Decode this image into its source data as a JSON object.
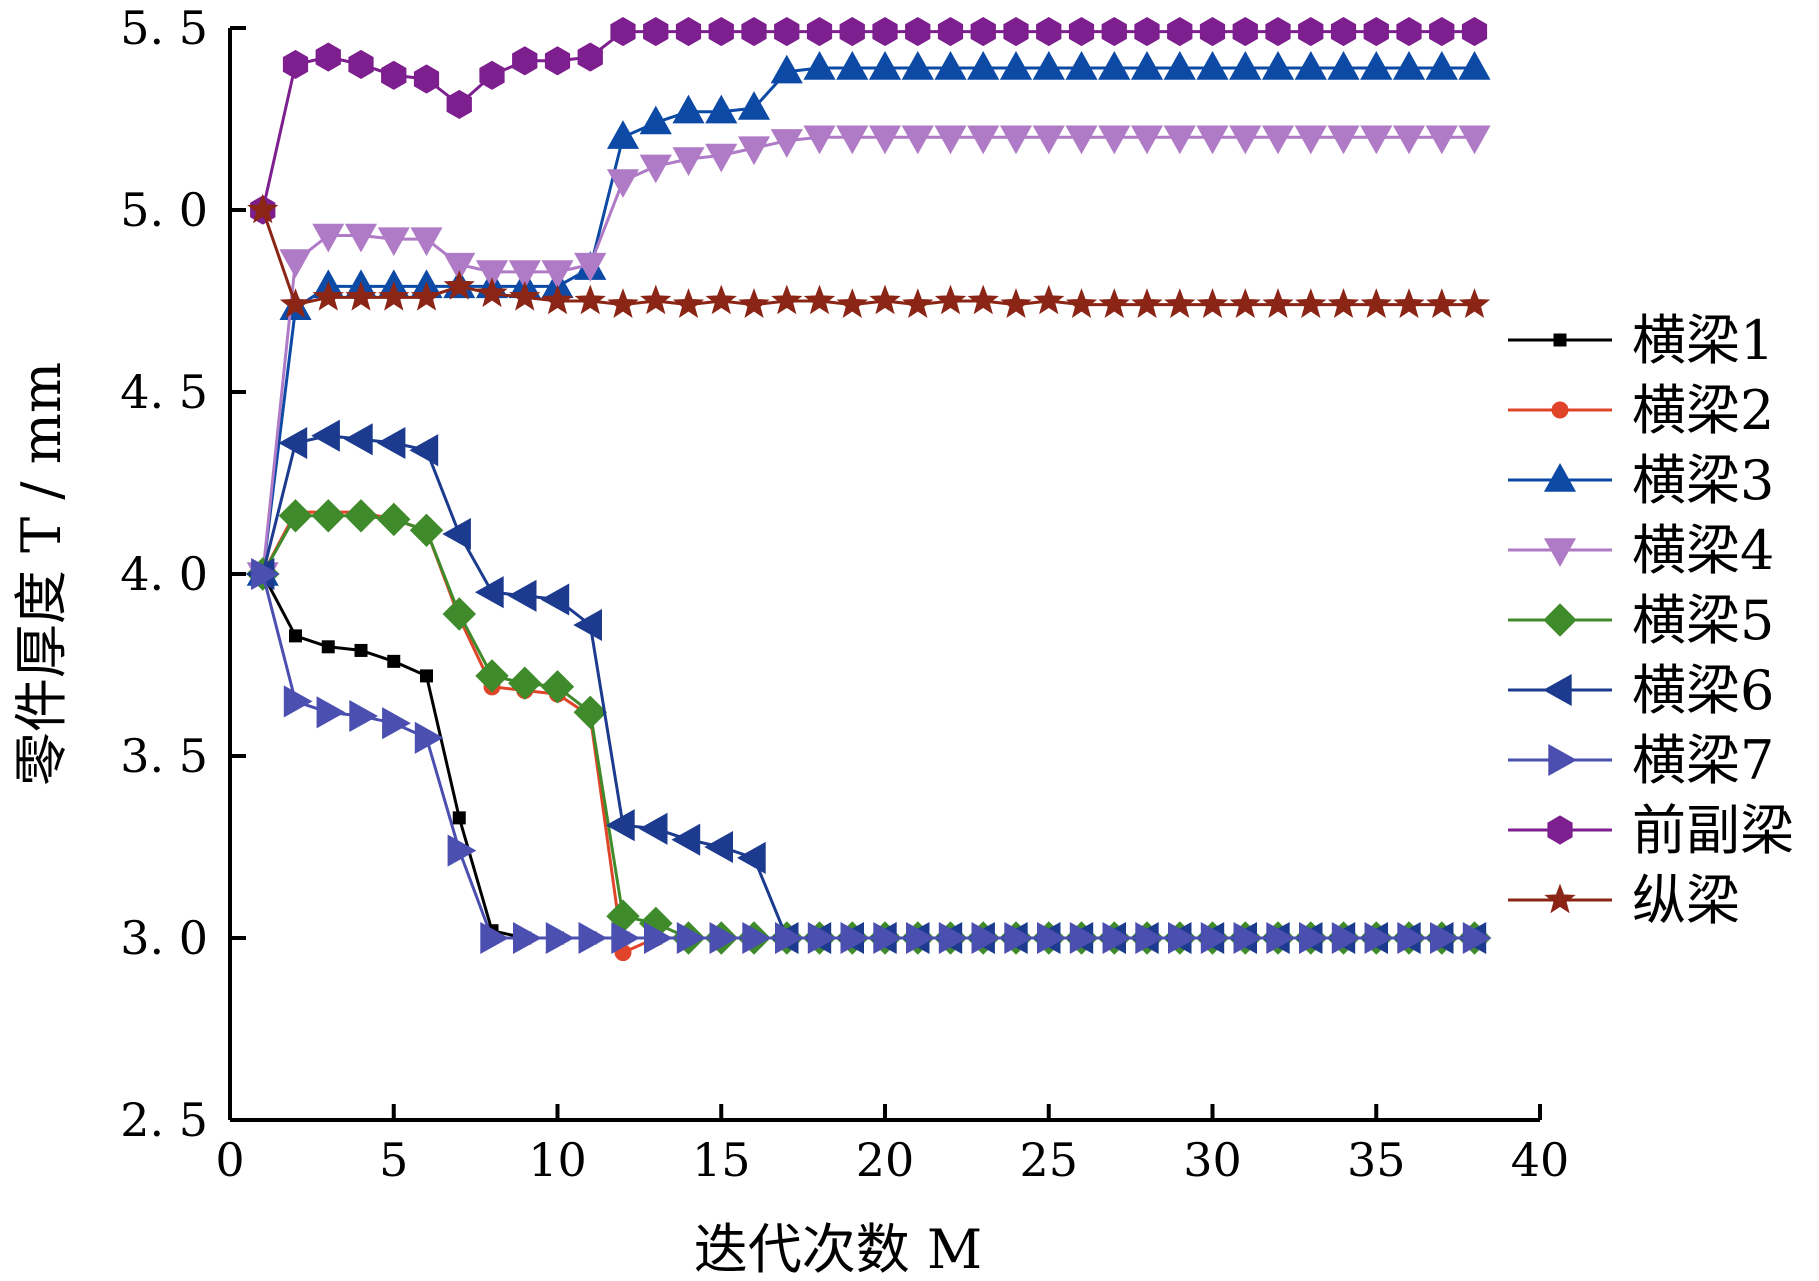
{
  "chart_data": {
    "type": "line",
    "xlabel": "迭代次数 M",
    "ylabel": "零件厚度 T / mm",
    "xlim": [
      0,
      40
    ],
    "ylim": [
      2.5,
      5.5
    ],
    "xticks": [
      "0",
      "5",
      "10",
      "15",
      "20",
      "25",
      "30",
      "35",
      "40"
    ],
    "yticks": [
      "2. 5",
      "3. 0",
      "3. 5",
      "4. 0",
      "4. 5",
      "5. 0",
      "5. 5"
    ],
    "grid": false,
    "legend_position": "right",
    "series": [
      {
        "name": "横梁1",
        "color": "#000000",
        "marker": "square",
        "x": [
          1,
          2,
          3,
          4,
          5,
          6,
          7,
          8,
          9,
          10,
          11,
          12,
          13,
          14,
          15,
          16,
          17,
          18,
          19,
          20,
          21,
          22,
          23,
          24,
          25,
          26,
          27,
          28,
          29,
          30,
          31,
          32,
          33,
          34,
          35,
          36,
          37,
          38
        ],
        "values": [
          4.0,
          3.83,
          3.8,
          3.79,
          3.76,
          3.72,
          3.33,
          3.02,
          3.0,
          3.0,
          3.0,
          3.0,
          3.0,
          3.0,
          3.0,
          3.0,
          3.0,
          3.0,
          3.0,
          3.0,
          3.0,
          3.0,
          3.0,
          3.0,
          3.0,
          3.0,
          3.0,
          3.0,
          3.0,
          3.0,
          3.0,
          3.0,
          3.0,
          3.0,
          3.0,
          3.0,
          3.0,
          3.0
        ]
      },
      {
        "name": "横梁2",
        "color": "#e0452a",
        "marker": "circle",
        "x": [
          1,
          2,
          3,
          4,
          5,
          6,
          7,
          8,
          9,
          10,
          11,
          12,
          13,
          14,
          15,
          16,
          17,
          18,
          19,
          20,
          21,
          22,
          23,
          24,
          25,
          26,
          27,
          28,
          29,
          30,
          31,
          32,
          33,
          34,
          35,
          36,
          37,
          38
        ],
        "values": [
          4.0,
          4.17,
          4.17,
          4.17,
          4.15,
          4.12,
          3.88,
          3.69,
          3.68,
          3.67,
          3.61,
          2.96,
          3.0,
          3.0,
          3.0,
          3.0,
          3.0,
          3.0,
          3.0,
          3.0,
          3.0,
          3.0,
          3.0,
          3.0,
          3.0,
          3.0,
          3.0,
          3.0,
          3.0,
          3.0,
          3.0,
          3.0,
          3.0,
          3.0,
          3.0,
          3.0,
          3.0,
          3.0
        ]
      },
      {
        "name": "横梁3",
        "color": "#0d4aa6",
        "marker": "triangle-up",
        "x": [
          1,
          2,
          3,
          4,
          5,
          6,
          7,
          8,
          9,
          10,
          11,
          12,
          13,
          14,
          15,
          16,
          17,
          18,
          19,
          20,
          21,
          22,
          23,
          24,
          25,
          26,
          27,
          28,
          29,
          30,
          31,
          32,
          33,
          34,
          35,
          36,
          37,
          38
        ],
        "values": [
          4.0,
          4.73,
          4.79,
          4.79,
          4.79,
          4.79,
          4.79,
          4.79,
          4.79,
          4.79,
          4.84,
          5.2,
          5.24,
          5.27,
          5.27,
          5.28,
          5.38,
          5.39,
          5.39,
          5.39,
          5.39,
          5.39,
          5.39,
          5.39,
          5.39,
          5.39,
          5.39,
          5.39,
          5.39,
          5.39,
          5.39,
          5.39,
          5.39,
          5.39,
          5.39,
          5.39,
          5.39,
          5.39
        ]
      },
      {
        "name": "横梁4",
        "color": "#b07bc6",
        "marker": "triangle-down",
        "x": [
          1,
          2,
          3,
          4,
          5,
          6,
          7,
          8,
          9,
          10,
          11,
          12,
          13,
          14,
          15,
          16,
          17,
          18,
          19,
          20,
          21,
          22,
          23,
          24,
          25,
          26,
          27,
          28,
          29,
          30,
          31,
          32,
          33,
          34,
          35,
          36,
          37,
          38
        ],
        "values": [
          4.0,
          4.86,
          4.93,
          4.93,
          4.92,
          4.92,
          4.85,
          4.83,
          4.83,
          4.83,
          4.85,
          5.08,
          5.12,
          5.14,
          5.15,
          5.17,
          5.19,
          5.2,
          5.2,
          5.2,
          5.2,
          5.2,
          5.2,
          5.2,
          5.2,
          5.2,
          5.2,
          5.2,
          5.2,
          5.2,
          5.2,
          5.2,
          5.2,
          5.2,
          5.2,
          5.2,
          5.2,
          5.2
        ]
      },
      {
        "name": "横梁5",
        "color": "#3f8a2b",
        "marker": "diamond",
        "x": [
          1,
          2,
          3,
          4,
          5,
          6,
          7,
          8,
          9,
          10,
          11,
          12,
          13,
          14,
          15,
          16,
          17,
          18,
          19,
          20,
          21,
          22,
          23,
          24,
          25,
          26,
          27,
          28,
          29,
          30,
          31,
          32,
          33,
          34,
          35,
          36,
          37,
          38
        ],
        "values": [
          4.0,
          4.16,
          4.16,
          4.16,
          4.15,
          4.12,
          3.89,
          3.72,
          3.7,
          3.69,
          3.62,
          3.06,
          3.04,
          3.0,
          3.0,
          3.0,
          3.0,
          3.0,
          3.0,
          3.0,
          3.0,
          3.0,
          3.0,
          3.0,
          3.0,
          3.0,
          3.0,
          3.0,
          3.0,
          3.0,
          3.0,
          3.0,
          3.0,
          3.0,
          3.0,
          3.0,
          3.0,
          3.0
        ]
      },
      {
        "name": "横梁6",
        "color": "#1c3b8f",
        "marker": "triangle-left",
        "x": [
          1,
          2,
          3,
          4,
          5,
          6,
          7,
          8,
          9,
          10,
          11,
          12,
          13,
          14,
          15,
          16,
          17,
          18,
          19,
          20,
          21,
          22,
          23,
          24,
          25,
          26,
          27,
          28,
          29,
          30,
          31,
          32,
          33,
          34,
          35,
          36,
          37,
          38
        ],
        "values": [
          4.0,
          4.36,
          4.38,
          4.37,
          4.36,
          4.34,
          4.11,
          3.95,
          3.94,
          3.93,
          3.86,
          3.31,
          3.3,
          3.27,
          3.25,
          3.22,
          3.0,
          3.0,
          3.0,
          3.0,
          3.0,
          3.0,
          3.0,
          3.0,
          3.0,
          3.0,
          3.0,
          3.0,
          3.0,
          3.0,
          3.0,
          3.0,
          3.0,
          3.0,
          3.0,
          3.0,
          3.0,
          3.0
        ]
      },
      {
        "name": "横梁7",
        "color": "#4b4fb0",
        "marker": "triangle-right",
        "x": [
          1,
          2,
          3,
          4,
          5,
          6,
          7,
          8,
          9,
          10,
          11,
          12,
          13,
          14,
          15,
          16,
          17,
          18,
          19,
          20,
          21,
          22,
          23,
          24,
          25,
          26,
          27,
          28,
          29,
          30,
          31,
          32,
          33,
          34,
          35,
          36,
          37,
          38
        ],
        "values": [
          4.0,
          3.65,
          3.62,
          3.61,
          3.59,
          3.55,
          3.24,
          3.0,
          3.0,
          3.0,
          3.0,
          3.0,
          3.0,
          3.0,
          3.0,
          3.0,
          3.0,
          3.0,
          3.0,
          3.0,
          3.0,
          3.0,
          3.0,
          3.0,
          3.0,
          3.0,
          3.0,
          3.0,
          3.0,
          3.0,
          3.0,
          3.0,
          3.0,
          3.0,
          3.0,
          3.0,
          3.0,
          3.0
        ]
      },
      {
        "name": "前副梁",
        "color": "#7d1f8e",
        "marker": "hexagon",
        "x": [
          1,
          2,
          3,
          4,
          5,
          6,
          7,
          8,
          9,
          10,
          11,
          12,
          13,
          14,
          15,
          16,
          17,
          18,
          19,
          20,
          21,
          22,
          23,
          24,
          25,
          26,
          27,
          28,
          29,
          30,
          31,
          32,
          33,
          34,
          35,
          36,
          37,
          38
        ],
        "values": [
          5.0,
          5.4,
          5.42,
          5.4,
          5.37,
          5.36,
          5.29,
          5.37,
          5.41,
          5.41,
          5.42,
          5.49,
          5.49,
          5.49,
          5.49,
          5.49,
          5.49,
          5.49,
          5.49,
          5.49,
          5.49,
          5.49,
          5.49,
          5.49,
          5.49,
          5.49,
          5.49,
          5.49,
          5.49,
          5.49,
          5.49,
          5.49,
          5.49,
          5.49,
          5.49,
          5.49,
          5.49,
          5.49
        ]
      },
      {
        "name": "纵梁",
        "color": "#8b2516",
        "marker": "star",
        "x": [
          1,
          2,
          3,
          4,
          5,
          6,
          7,
          8,
          9,
          10,
          11,
          12,
          13,
          14,
          15,
          16,
          17,
          18,
          19,
          20,
          21,
          22,
          23,
          24,
          25,
          26,
          27,
          28,
          29,
          30,
          31,
          32,
          33,
          34,
          35,
          36,
          37,
          38
        ],
        "values": [
          5.0,
          4.74,
          4.76,
          4.76,
          4.76,
          4.76,
          4.79,
          4.77,
          4.76,
          4.75,
          4.75,
          4.74,
          4.75,
          4.74,
          4.75,
          4.74,
          4.75,
          4.75,
          4.74,
          4.75,
          4.74,
          4.75,
          4.75,
          4.74,
          4.75,
          4.74,
          4.74,
          4.74,
          4.74,
          4.74,
          4.74,
          4.74,
          4.74,
          4.74,
          4.74,
          4.74,
          4.74,
          4.74
        ]
      }
    ]
  }
}
